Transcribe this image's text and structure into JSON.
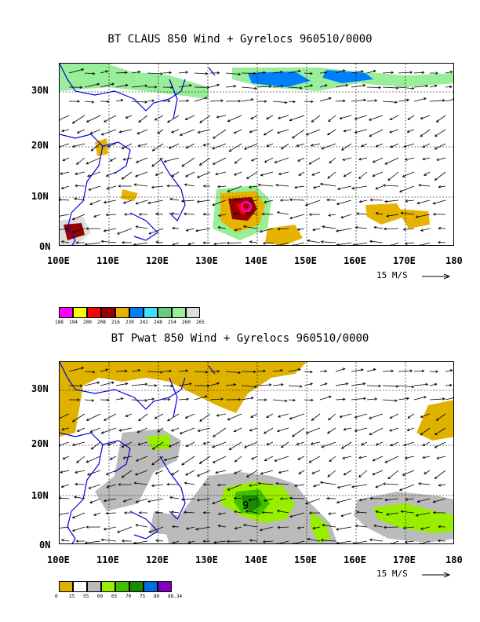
{
  "panels": [
    {
      "title": "BT CLAUS 850 Wind + Gyrelocs 960510/0000",
      "lat_labels": [
        "30N",
        "20N",
        "10N",
        "0N"
      ],
      "lon_labels": [
        "100E",
        "110E",
        "120E",
        "130E",
        "140E",
        "150E",
        "160E",
        "170E",
        "180"
      ],
      "scale_label": "15 M/S",
      "storm_marker": "9",
      "colorbar": {
        "colors": [
          "#ff00ff",
          "#ffff00",
          "#ff0000",
          "#990000",
          "#e6b400",
          "#0080ff",
          "#40e0ff",
          "#66cc80",
          "#99ee99",
          "#dddddd"
        ],
        "labels": [
          "188",
          "194",
          "200",
          "208",
          "216",
          "230",
          "242",
          "248",
          "254",
          "260",
          "265"
        ]
      }
    },
    {
      "title": "BT Pwat 850 Wind + Gyrelocs 960510/0000",
      "lat_labels": [
        "30N",
        "20N",
        "10N",
        "0N"
      ],
      "lon_labels": [
        "100E",
        "110E",
        "120E",
        "130E",
        "140E",
        "150E",
        "160E",
        "170E",
        "180"
      ],
      "scale_label": "15 M/S",
      "storm_marker": "9",
      "colorbar": {
        "colors": [
          "#e0b200",
          "#ffffff",
          "#bbbbbb",
          "#99ee00",
          "#40c000",
          "#1a8a00",
          "#0070e0",
          "#8000c0"
        ],
        "labels": [
          "0",
          "25",
          "55",
          "60",
          "65",
          "70",
          "75",
          "80",
          "88.34"
        ]
      }
    }
  ]
}
